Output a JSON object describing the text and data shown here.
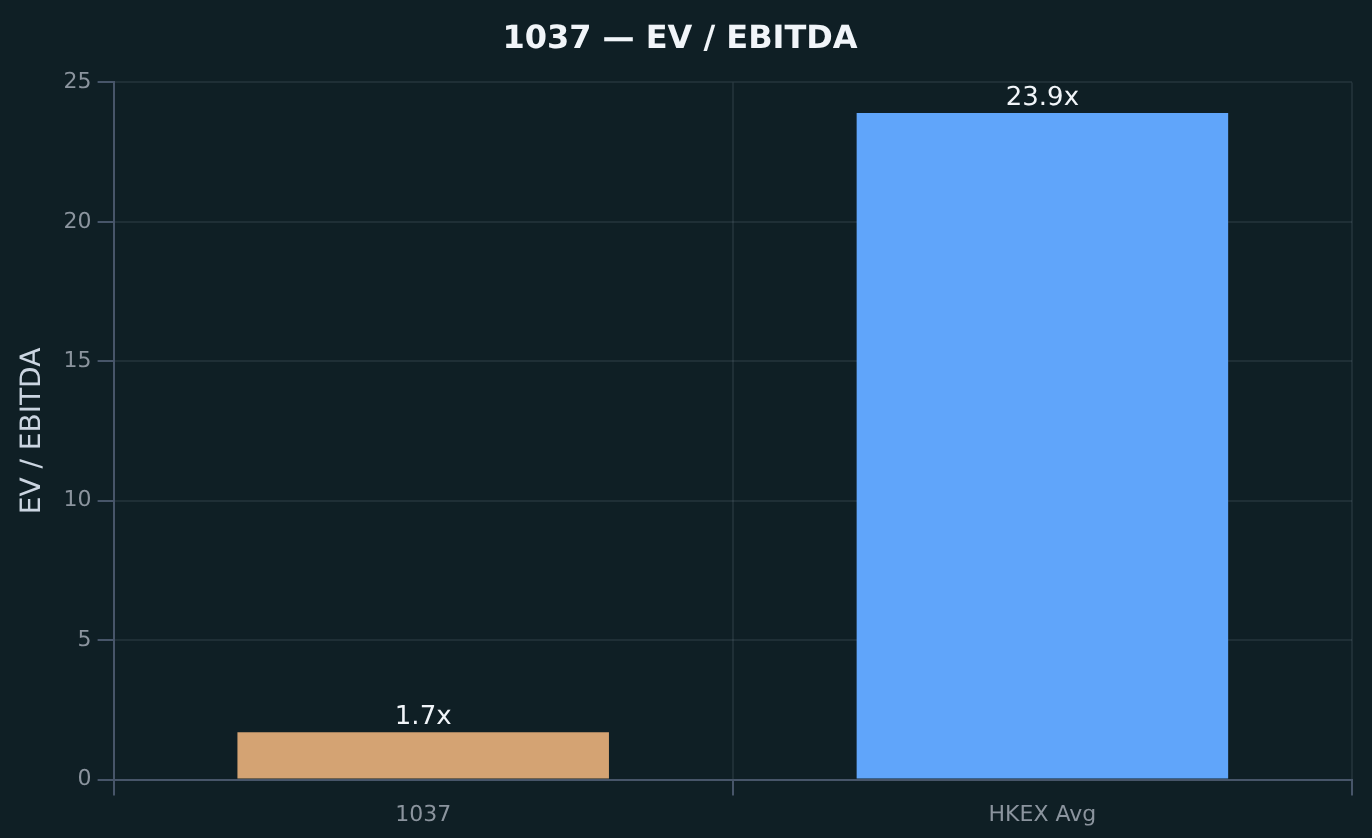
{
  "chart_data": {
    "type": "bar",
    "title": "1037 — EV / EBITDA",
    "ylabel": "EV / EBITDA",
    "categories": [
      "1037",
      "HKEX Avg"
    ],
    "values": [
      1.7,
      23.9
    ],
    "colors": [
      "#d4a373",
      "#60a5fa"
    ],
    "value_labels": [
      "1.7x",
      "23.9x"
    ],
    "ylim": [
      0,
      25
    ],
    "yticks": [
      0,
      5,
      10,
      15,
      20,
      25
    ],
    "grid": true,
    "legend": false
  }
}
